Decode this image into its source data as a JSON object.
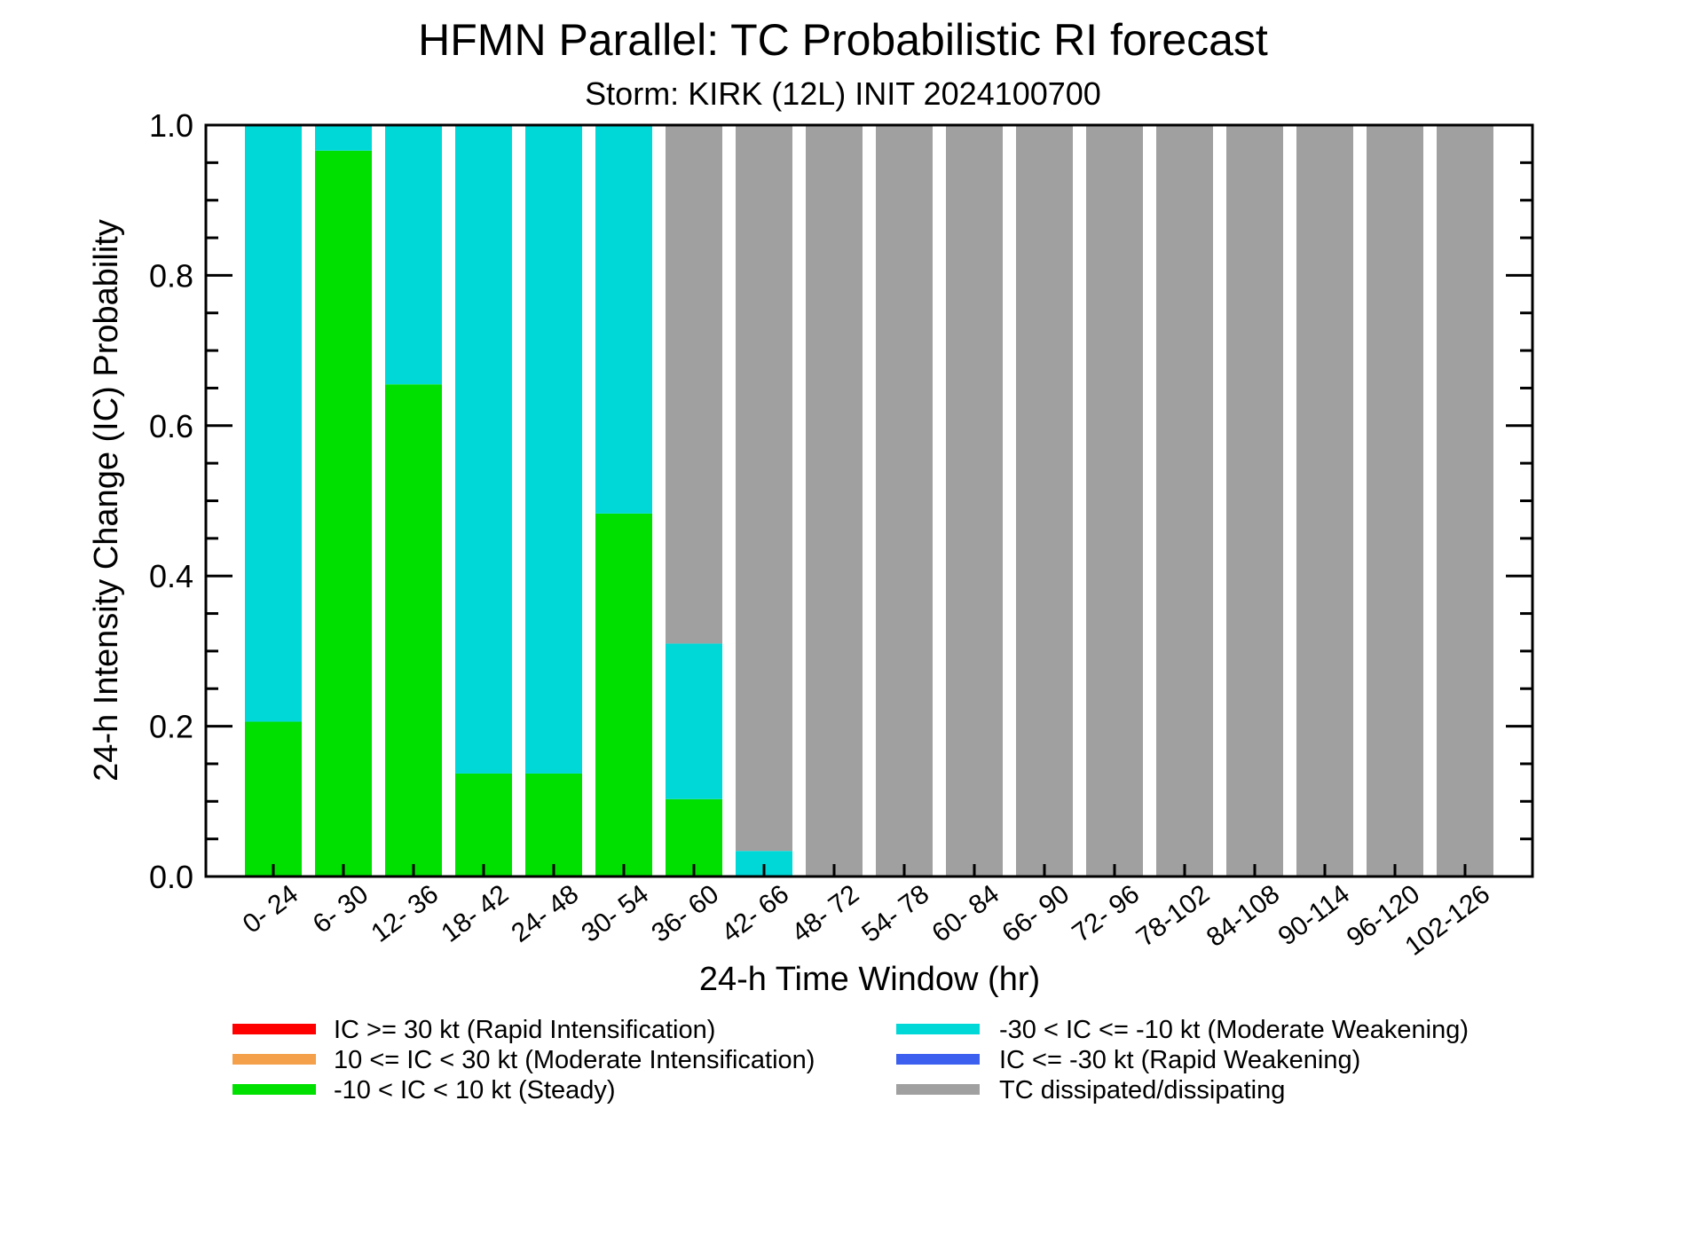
{
  "chart_data": {
    "type": "bar",
    "stacked": true,
    "title": "HFMN Parallel: TC Probabilistic RI forecast",
    "subtitle": "Storm: KIRK (12L) INIT 2024100700",
    "xlabel": "24-h Time Window (hr)",
    "ylabel": "24-h Intensity Change (IC) Probability",
    "ylim": [
      0,
      1
    ],
    "yticks": [
      "0.0",
      "0.2",
      "0.4",
      "0.6",
      "0.8",
      "1.0"
    ],
    "categories": [
      "0- 24",
      "6- 30",
      "12- 36",
      "18- 42",
      "24- 48",
      "30- 54",
      "36- 60",
      "42- 66",
      "48- 72",
      "54- 78",
      "60- 84",
      "66- 90",
      "72- 96",
      "78-102",
      "84-108",
      "90-114",
      "96-120",
      "102-126"
    ],
    "series": [
      {
        "name": "IC >= 30 kt (Rapid Intensification)",
        "color": "#ff0000",
        "values": [
          0,
          0,
          0,
          0,
          0,
          0,
          0,
          0,
          0,
          0,
          0,
          0,
          0,
          0,
          0,
          0,
          0,
          0
        ]
      },
      {
        "name": "10 <= IC < 30 kt (Moderate Intensification)",
        "color": "#f4a04a",
        "values": [
          0,
          0,
          0,
          0,
          0,
          0,
          0,
          0,
          0,
          0,
          0,
          0,
          0,
          0,
          0,
          0,
          0,
          0
        ]
      },
      {
        "name": "-10 < IC < 10 kt (Steady)",
        "color": "#00e000",
        "values": [
          0.206,
          0.966,
          0.655,
          0.137,
          0.137,
          0.483,
          0.103,
          0,
          0,
          0,
          0,
          0,
          0,
          0,
          0,
          0,
          0,
          0
        ]
      },
      {
        "name": "-30 < IC <= -10 kt (Moderate Weakening)",
        "color": "#00d8d8",
        "values": [
          0.794,
          0.034,
          0.345,
          0.863,
          0.863,
          0.517,
          0.207,
          0.034,
          0,
          0,
          0,
          0,
          0,
          0,
          0,
          0,
          0,
          0
        ]
      },
      {
        "name": "IC <= -30 kt (Rapid Weakening)",
        "color": "#3c5ff0",
        "values": [
          0,
          0,
          0,
          0,
          0,
          0,
          0,
          0,
          0,
          0,
          0,
          0,
          0,
          0,
          0,
          0,
          0,
          0
        ]
      },
      {
        "name": "TC dissipated/dissipating",
        "color": "#a0a0a0",
        "values": [
          0,
          0,
          0,
          0,
          0,
          0,
          0.69,
          0.966,
          1,
          1,
          1,
          1,
          1,
          1,
          1,
          1,
          1,
          1
        ]
      }
    ],
    "legend": {
      "placement": "bottom",
      "columns": [
        [
          "IC >= 30 kt (Rapid Intensification)",
          "10 <= IC < 30 kt (Moderate Intensification)",
          "-10 < IC < 10 kt (Steady)"
        ],
        [
          "-30 < IC <= -10 kt (Moderate Weakening)",
          "IC <= -30 kt (Rapid Weakening)",
          "TC dissipated/dissipating"
        ]
      ]
    },
    "grid": false
  }
}
